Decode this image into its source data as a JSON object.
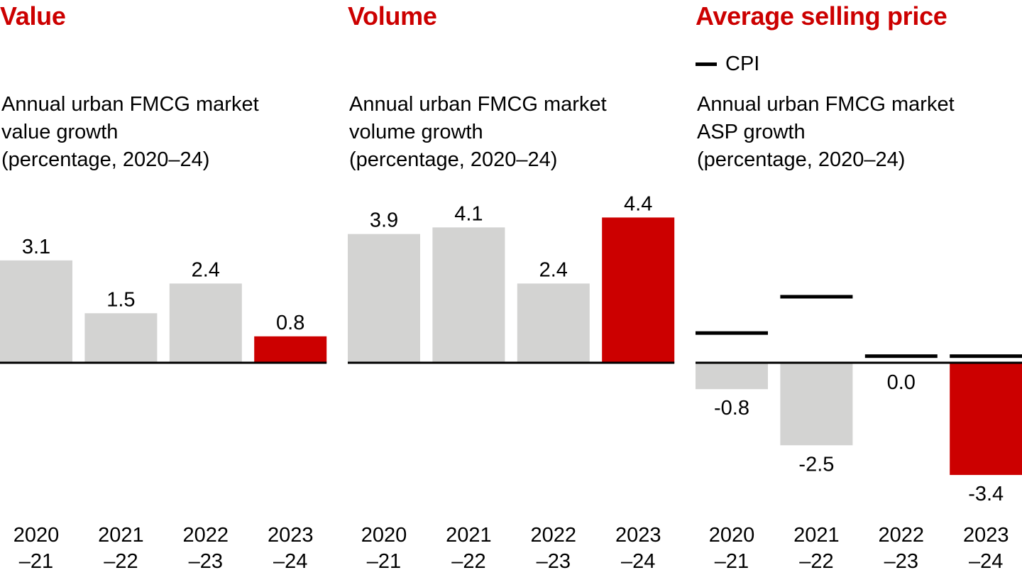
{
  "colors": {
    "title": "#cc0000",
    "bar_default": "#d3d3d2",
    "bar_highlight": "#cc0000",
    "baseline": "#000000",
    "cpi_line": "#000000"
  },
  "chart_data": [
    {
      "type": "bar",
      "title": "Value",
      "subtitle": "Annual urban FMCG market\nvalue growth\n(percentage, 2020–24)",
      "xlabel": "",
      "ylabel": "",
      "categories": [
        [
          "2020",
          "–21"
        ],
        [
          "2021",
          "–22"
        ],
        [
          "2022",
          "–23"
        ],
        [
          "2023",
          "–24"
        ]
      ],
      "values": [
        3.1,
        1.5,
        2.4,
        0.8
      ],
      "labels": [
        "3.1",
        "1.5",
        "2.4",
        "0.8"
      ],
      "highlight_index": 3,
      "ylim": [
        -3.8,
        4.8
      ],
      "grid": false
    },
    {
      "type": "bar",
      "title": "Volume",
      "subtitle": "Annual urban FMCG market\nvolume growth\n(percentage, 2020–24)",
      "xlabel": "",
      "ylabel": "",
      "categories": [
        [
          "2020",
          "–21"
        ],
        [
          "2021",
          "–22"
        ],
        [
          "2022",
          "–23"
        ],
        [
          "2023",
          "–24"
        ]
      ],
      "values": [
        3.9,
        4.1,
        2.4,
        4.4
      ],
      "labels": [
        "3.9",
        "4.1",
        "2.4",
        "4.4"
      ],
      "highlight_index": 3,
      "ylim": [
        -3.8,
        4.8
      ],
      "grid": false
    },
    {
      "type": "bar",
      "title": "Average selling price",
      "legend": [
        {
          "name": "CPI",
          "marker": "line"
        }
      ],
      "legend_position": "top-left",
      "subtitle": "Annual urban FMCG market\nASP growth\n(percentage, 2020–24)",
      "xlabel": "",
      "ylabel": "",
      "categories": [
        [
          "2020",
          "–21"
        ],
        [
          "2021",
          "–22"
        ],
        [
          "2022",
          "–23"
        ],
        [
          "2023",
          "–24"
        ]
      ],
      "values": [
        -0.8,
        -2.5,
        0.0,
        -3.4
      ],
      "labels": [
        "-0.8",
        "-2.5",
        "0.0",
        "-3.4"
      ],
      "cpi": [
        0.9,
        2.0,
        0.2,
        0.2
      ],
      "highlight_index": 3,
      "ylim": [
        -3.8,
        4.8
      ],
      "grid": false
    }
  ]
}
